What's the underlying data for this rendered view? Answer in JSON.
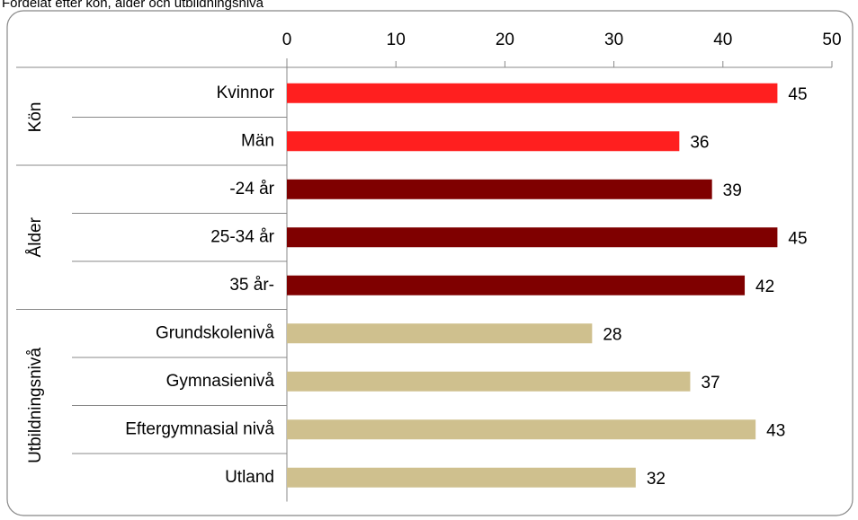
{
  "chart_data": {
    "type": "bar",
    "subtitle": "Fördelat efter kön, ålder och utbildningsnivå",
    "groups": [
      {
        "name": "Kön",
        "categories": [
          "Kvinnor",
          "Män"
        ],
        "values": [
          45,
          36
        ],
        "color": "#ff1f1f"
      },
      {
        "name": "Ålder",
        "categories": [
          "-24 år",
          "25-34 år",
          "35 år-"
        ],
        "values": [
          39,
          45,
          42
        ],
        "color": "#7f0000"
      },
      {
        "name": "Utbildningsnivå",
        "categories": [
          "Grundskolenivå",
          "Gymnasienivå",
          "Eftergymnasial nivå",
          "Utland"
        ],
        "values": [
          28,
          37,
          43,
          32
        ],
        "color": "#cfc08e"
      }
    ],
    "xlim": [
      0,
      50
    ],
    "xticks": [
      0,
      10,
      20,
      30,
      40,
      50
    ]
  }
}
